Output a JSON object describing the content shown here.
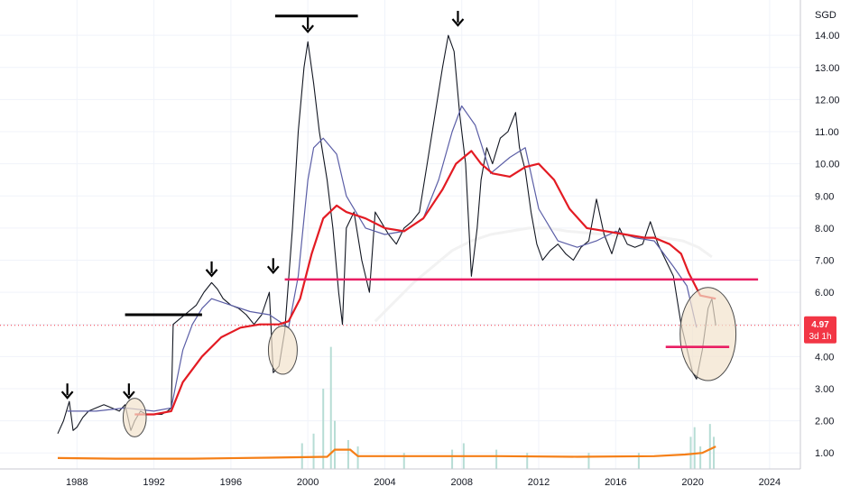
{
  "chart_data": {
    "type": "line",
    "currency_label": "SGD",
    "x_ticks": [
      "1988",
      "1992",
      "1996",
      "2000",
      "2004",
      "2008",
      "2012",
      "2016",
      "2020",
      "2024"
    ],
    "x_tick_values": [
      1988,
      1992,
      1996,
      2000,
      2004,
      2008,
      2012,
      2016,
      2020,
      2024
    ],
    "y_ticks": [
      "1.00",
      "2.00",
      "3.00",
      "4.00",
      "5.00",
      "6.00",
      "7.00",
      "8.00",
      "9.00",
      "10.00",
      "11.00",
      "12.00",
      "13.00",
      "14.00"
    ],
    "y_tick_values": [
      1,
      2,
      3,
      4,
      5,
      6,
      7,
      8,
      9,
      10,
      11,
      12,
      13,
      14
    ],
    "xlim": [
      1984,
      2025.6
    ],
    "ylim": [
      0.5,
      15.1
    ],
    "grid": true,
    "last_price": {
      "value": 4.97,
      "label": "4.97",
      "sublabel": "3d 1h",
      "color": "#f23645"
    },
    "colors": {
      "price": "#131722",
      "ma_fast": "#5b5ea6",
      "ma_slow": "#e31b23",
      "ma_long": "#f2f2f2",
      "volume_avg": "#f57f17",
      "volume_bars": "#b7ddd5",
      "levels": "#e91e63",
      "markers": "#000000",
      "highlight_fill": "#f2e3cc",
      "highlight_stroke": "#4a4a4a"
    },
    "series": [
      {
        "type": "price",
        "x": [
          1987.0,
          1987.3,
          1987.6,
          1987.8,
          1988.0,
          1988.3,
          1988.6,
          1989.0,
          1989.4,
          1989.8,
          1990.2,
          1990.5,
          1990.8,
          1991.0,
          1991.3,
          1991.6,
          1992.0,
          1992.4,
          1992.7,
          1992.9,
          1993.0,
          1993.4,
          1993.8,
          1994.2,
          1994.6,
          1995.0,
          1995.3,
          1995.6,
          1996.0,
          1996.4,
          1996.8,
          1997.2,
          1997.6,
          1998.0,
          1998.2,
          1998.5,
          1998.8,
          1999.2,
          1999.5,
          1999.8,
          2000.0,
          2000.3,
          2000.6,
          2001.0,
          2001.3,
          2001.6,
          2001.8,
          2002.0,
          2002.4,
          2002.8,
          2003.2,
          2003.5,
          2003.8,
          2004.2,
          2004.6,
          2005.0,
          2005.4,
          2005.8,
          2006.2,
          2006.6,
          2007.0,
          2007.3,
          2007.6,
          2007.9,
          2008.2,
          2008.5,
          2008.8,
          2009.0,
          2009.3,
          2009.6,
          2010.0,
          2010.4,
          2010.8,
          2011.0,
          2011.3,
          2011.6,
          2011.9,
          2012.2,
          2012.6,
          2013.0,
          2013.4,
          2013.8,
          2014.2,
          2014.6,
          2015.0,
          2015.4,
          2015.8,
          2016.2,
          2016.6,
          2017.0,
          2017.4,
          2017.8,
          2018.2,
          2018.6,
          2019.0,
          2019.4,
          2019.8,
          2020.0,
          2020.2,
          2020.5,
          2020.8,
          2021.0,
          2021.2
        ],
        "values": [
          1.6,
          2.0,
          2.6,
          1.7,
          1.8,
          2.1,
          2.3,
          2.4,
          2.5,
          2.4,
          2.3,
          2.5,
          1.7,
          2.0,
          2.3,
          2.2,
          2.2,
          2.2,
          2.3,
          2.4,
          5.0,
          5.2,
          5.4,
          5.6,
          6.0,
          6.3,
          6.1,
          5.8,
          5.6,
          5.5,
          5.3,
          5.0,
          5.3,
          6.0,
          3.5,
          3.7,
          4.8,
          8.0,
          11.0,
          13.0,
          13.8,
          12.5,
          11.0,
          9.5,
          8.0,
          6.0,
          5.0,
          8.0,
          8.5,
          7.0,
          6.0,
          8.5,
          8.2,
          7.8,
          7.5,
          8.0,
          8.2,
          8.5,
          10.0,
          11.5,
          13.0,
          14.0,
          13.5,
          11.5,
          10.0,
          6.5,
          8.0,
          9.5,
          10.5,
          10.0,
          10.8,
          11.0,
          11.6,
          10.5,
          9.8,
          8.5,
          7.5,
          7.0,
          7.3,
          7.5,
          7.2,
          7.0,
          7.4,
          7.6,
          8.9,
          7.8,
          7.2,
          8.0,
          7.5,
          7.4,
          7.5,
          8.2,
          7.5,
          7.0,
          6.5,
          5.0,
          4.0,
          3.5,
          3.3,
          4.2,
          5.5,
          5.8,
          4.97
        ]
      },
      {
        "type": "ma_fast",
        "x": [
          1987.5,
          1989.0,
          1990.5,
          1992.0,
          1992.9,
          1993.5,
          1994.0,
          1994.5,
          1995.0,
          1996.0,
          1997.0,
          1998.0,
          1999.0,
          1999.5,
          2000.0,
          2000.3,
          2000.8,
          2001.5,
          2002.0,
          2003.0,
          2004.0,
          2005.0,
          2006.0,
          2006.8,
          2007.5,
          2008.0,
          2008.7,
          2009.5,
          2010.5,
          2011.3,
          2012.0,
          2013.0,
          2014.0,
          2015.0,
          2016.0,
          2017.0,
          2018.0,
          2019.0,
          2019.7,
          2020.2
        ],
        "values": [
          2.3,
          2.3,
          2.4,
          2.3,
          2.4,
          4.2,
          5.0,
          5.5,
          5.8,
          5.6,
          5.4,
          5.3,
          4.9,
          6.5,
          9.5,
          10.5,
          10.8,
          10.3,
          9.0,
          8.0,
          7.8,
          7.9,
          8.3,
          9.5,
          11.0,
          11.8,
          11.2,
          9.7,
          10.2,
          10.5,
          8.6,
          7.6,
          7.4,
          7.6,
          7.9,
          7.7,
          7.6,
          6.8,
          6.2,
          4.9
        ]
      },
      {
        "type": "ma_slow",
        "x": [
          1991.0,
          1992.0,
          1992.9,
          1993.5,
          1994.5,
          1995.5,
          1996.5,
          1997.5,
          1998.5,
          1999.0,
          1999.6,
          2000.2,
          2000.8,
          2001.5,
          2002.0,
          2003.0,
          2004.0,
          2005.0,
          2006.0,
          2007.0,
          2007.7,
          2008.5,
          2009.0,
          2009.6,
          2010.5,
          2011.3,
          2012.0,
          2012.8,
          2013.6,
          2014.5,
          2015.5,
          2016.5,
          2017.5,
          2018.0,
          2018.8,
          2019.4,
          2019.8,
          2020.4,
          2021.2
        ],
        "values": [
          2.2,
          2.2,
          2.3,
          3.2,
          4.0,
          4.6,
          4.9,
          5.0,
          5.0,
          5.1,
          5.8,
          7.2,
          8.3,
          8.7,
          8.5,
          8.3,
          8.0,
          7.9,
          8.3,
          9.2,
          10.0,
          10.4,
          10.0,
          9.7,
          9.6,
          9.9,
          10.0,
          9.5,
          8.6,
          8.0,
          7.9,
          7.8,
          7.7,
          7.7,
          7.5,
          7.2,
          6.6,
          5.9,
          5.8
        ]
      },
      {
        "type": "ma_long",
        "x": [
          2003.5,
          2004.5,
          2005.5,
          2006.5,
          2007.5,
          2008.5,
          2009.5,
          2010.5,
          2011.5,
          2012.5,
          2013.5,
          2014.5,
          2015.5,
          2016.5,
          2017.5,
          2018.5,
          2019.5,
          2020.3,
          2021.0
        ],
        "values": [
          5.1,
          5.7,
          6.3,
          6.8,
          7.3,
          7.6,
          7.8,
          7.9,
          8.0,
          8.0,
          7.9,
          7.85,
          7.8,
          7.75,
          7.7,
          7.7,
          7.6,
          7.4,
          7.1
        ]
      }
    ],
    "volume_avg": {
      "x": [
        1987.0,
        1990.0,
        1994.0,
        1998.0,
        2001.0,
        2001.4,
        2002.2,
        2002.6,
        2006.0,
        2010.0,
        2014.0,
        2018.0,
        2019.6,
        2020.5,
        2021.2
      ],
      "values": [
        0.84,
        0.82,
        0.82,
        0.85,
        0.88,
        1.1,
        1.1,
        0.9,
        0.9,
        0.9,
        0.88,
        0.9,
        0.95,
        1.0,
        1.2
      ]
    },
    "volume_bars": {
      "x": [
        1999.7,
        2000.3,
        2000.8,
        2001.2,
        2001.4,
        2002.1,
        2002.6,
        2005.0,
        2007.5,
        2008.1,
        2009.8,
        2011.4,
        2014.6,
        2017.2,
        2019.9,
        2020.1,
        2020.4,
        2020.9,
        2021.1
      ],
      "values": [
        1.3,
        1.6,
        3.0,
        4.3,
        2.0,
        1.4,
        1.2,
        1.0,
        1.1,
        1.3,
        1.1,
        1.0,
        1.0,
        1.0,
        1.5,
        1.8,
        1.2,
        1.9,
        1.5
      ]
    },
    "annotations": {
      "horizontal_levels": [
        {
          "from": 1998.8,
          "to": 2023.4,
          "y": 6.4,
          "color": "#e91e63"
        },
        {
          "from": 2018.6,
          "to": 2021.9,
          "y": 4.3,
          "color": "#e91e63"
        }
      ],
      "black_bars": [
        {
          "from": 1990.5,
          "to": 1994.5,
          "y": 5.3
        },
        {
          "from": 1998.3,
          "to": 2002.6,
          "y": 14.6
        }
      ],
      "down_arrows": [
        {
          "x": 1987.5,
          "y": 2.6
        },
        {
          "x": 1990.7,
          "y": 2.6
        },
        {
          "x": 1995.0,
          "y": 6.4
        },
        {
          "x": 1998.2,
          "y": 6.5
        },
        {
          "x": 2000.0,
          "y": 14.0
        },
        {
          "x": 2007.8,
          "y": 14.2
        }
      ],
      "ellipses": [
        {
          "cx": 1991.0,
          "cy": 2.1,
          "rx": 0.6,
          "ry": 0.6
        },
        {
          "cx": 1998.7,
          "cy": 4.2,
          "rx": 0.75,
          "ry": 0.75
        },
        {
          "cx": 2020.8,
          "cy": 4.7,
          "rx": 1.45,
          "ry": 1.45
        }
      ],
      "last_price_line": {
        "y": 4.97
      }
    }
  }
}
